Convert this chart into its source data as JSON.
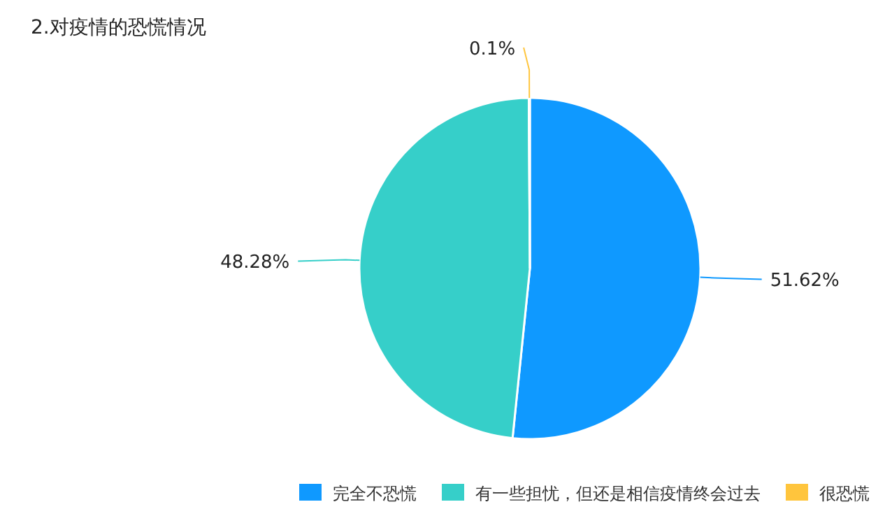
{
  "chart_data": {
    "type": "pie",
    "title": "2.对疫情的恐慌情况",
    "categories": [
      "完全不恐慌",
      "有一些担忧，但还是相信疫情终会过去",
      "很恐慌"
    ],
    "values": [
      51.62,
      48.28,
      0.1
    ],
    "colors": [
      "#0f99ff",
      "#36cfc9",
      "#ffc53d"
    ],
    "value_labels": [
      "51.62%",
      "48.28%",
      "0.1%"
    ],
    "legend": "bottom"
  }
}
